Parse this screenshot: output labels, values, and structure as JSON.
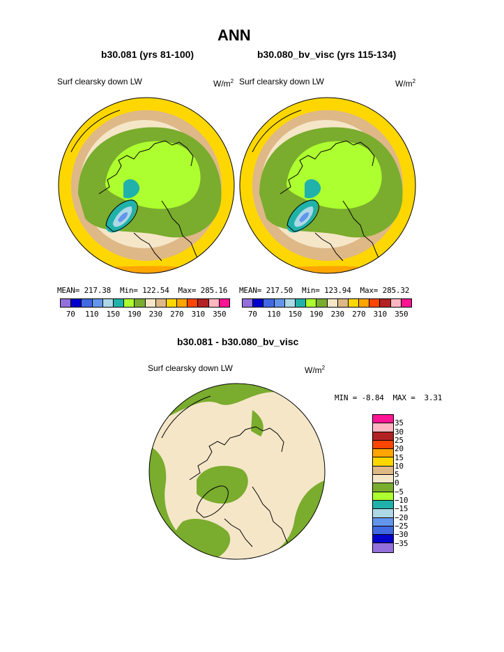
{
  "figure": {
    "title": "ANN",
    "left": {
      "title": "b30.081 (yrs 81-100)",
      "field": "Surf clearsky down LW",
      "units": "W/m",
      "units_sup": "2",
      "mean_label": "MEAN=",
      "mean": "217.38",
      "min_label": "Min=",
      "min": "122.54",
      "max_label": "Max=",
      "max": "285.16"
    },
    "right": {
      "title": "b30.080_bv_visc (yrs 115-134)",
      "field": "Surf clearsky down LW",
      "units": "W/m",
      "units_sup": "2",
      "mean_label": "MEAN=",
      "mean": "217.50",
      "min_label": "Min=",
      "min": "123.94",
      "max_label": "Max=",
      "max": "285.32"
    },
    "diff": {
      "title": "b30.081 - b30.080_bv_visc",
      "field": "Surf clearsky down LW",
      "units": "W/m",
      "units_sup": "2",
      "min_label": "MIN =",
      "min": "-8.84",
      "max_label": "MAX =",
      "max": "3.31"
    }
  },
  "colorbar_main": {
    "colors": [
      "#9370db",
      "#0000cd",
      "#4169e1",
      "#6495ed",
      "#add8e6",
      "#20b2aa",
      "#adff2f",
      "#7aac2e",
      "#f5e6c8",
      "#deb887",
      "#ffd700",
      "#ffa500",
      "#ff4500",
      "#b22222",
      "#ffb6c1",
      "#ff1493"
    ],
    "labels": [
      "70",
      "110",
      "150",
      "190",
      "230",
      "270",
      "310",
      "350"
    ]
  },
  "colorbar_diff": {
    "colors": [
      "#ff1493",
      "#ffb6c1",
      "#b22222",
      "#ff4500",
      "#ffa500",
      "#ffd700",
      "#deb887",
      "#f5e6c8",
      "#7aac2e",
      "#adff2f",
      "#20b2aa",
      "#add8e6",
      "#6495ed",
      "#4169e1",
      "#0000cd",
      "#9370db"
    ],
    "labels": [
      "35",
      "30",
      "25",
      "20",
      "15",
      "10",
      "5",
      "0",
      "−5",
      "−10",
      "−15",
      "−20",
      "−25",
      "−30",
      "−35"
    ]
  }
}
